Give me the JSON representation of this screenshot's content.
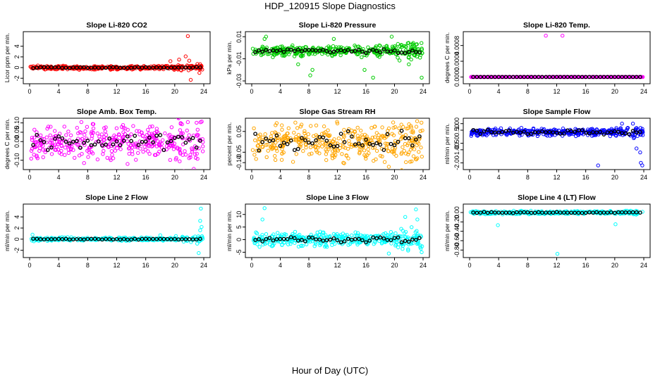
{
  "figure_title": "HDP_120915  Slope Diagnostics",
  "x_axis_label": "Hour of Day (UTC)",
  "chart_data": [
    {
      "type": "scatter",
      "title": "Slope Li-820 CO2",
      "ylabel": "Licor ppm per min.",
      "xlim": [
        0,
        24
      ],
      "xticks": [
        0,
        4,
        8,
        12,
        16,
        20,
        24
      ],
      "ylim": [
        -2.5,
        6.2
      ],
      "yticks": [
        -2,
        0,
        2,
        4
      ],
      "color": "#ff0000",
      "baseline": 0,
      "spread": 0.35,
      "mean_spread": 0.15,
      "outliers": [
        [
          21.8,
          5.9
        ],
        [
          22.2,
          -2.3
        ],
        [
          21.5,
          2.1
        ],
        [
          22.0,
          1.3
        ],
        [
          20.6,
          1.5
        ],
        [
          19.4,
          1.2
        ],
        [
          23.4,
          -1.0
        ]
      ]
    },
    {
      "type": "scatter",
      "title": "Slope Li-820 Pressure",
      "ylabel": "kPa per min.",
      "xlim": [
        0,
        24
      ],
      "xticks": [
        0,
        4,
        8,
        12,
        16,
        20,
        24
      ],
      "ylim": [
        -0.03,
        0.012
      ],
      "yticks": [
        0.01,
        -0.01,
        -0.03
      ],
      "color": "#00cc00",
      "baseline": -0.003,
      "spread": 0.0045,
      "mean_spread": 0.002,
      "outliers": [
        [
          1.8,
          0.008
        ],
        [
          2.0,
          0.01
        ],
        [
          8.2,
          -0.025
        ],
        [
          8.5,
          -0.02
        ],
        [
          15.8,
          -0.02
        ],
        [
          17.0,
          -0.027
        ],
        [
          19.6,
          0.01
        ],
        [
          23.8,
          -0.027
        ],
        [
          22.0,
          -0.015
        ],
        [
          11.5,
          0.008
        ],
        [
          6.5,
          -0.015
        ]
      ]
    },
    {
      "type": "scatter",
      "title": "Slope Li-820 Temp.",
      "ylabel": "degrees C per min.",
      "xlim": [
        0,
        24
      ],
      "xticks": [
        0,
        4,
        8,
        12,
        16,
        20,
        24
      ],
      "ylim": [
        -0.0001,
        0.00108
      ],
      "yticks": [
        0.0,
        0.0004,
        0.0008
      ],
      "color": "#ff00ff",
      "baseline": 0,
      "spread": 0,
      "mean_spread": 0,
      "outliers": [
        [
          10.5,
          0.00105
        ],
        [
          12.8,
          0.00105
        ]
      ]
    },
    {
      "type": "scatter",
      "title": "Slope Amb. Box Temp.",
      "ylabel": "degrees C per min.",
      "xlim": [
        0,
        24
      ],
      "xticks": [
        0,
        4,
        8,
        12,
        16,
        20,
        24
      ],
      "ylim": [
        -0.135,
        0.11
      ],
      "yticks": [
        -0.1,
        0.0,
        0.05,
        0.1
      ],
      "color": "#ff00ff",
      "baseline": 0.0,
      "spread": 0.08,
      "mean_spread": 0.05,
      "outliers": [
        [
          7.5,
          -0.115
        ],
        [
          13.5,
          -0.12
        ]
      ]
    },
    {
      "type": "scatter",
      "title": "Slope Gas Stream RH",
      "ylabel": "percent per min.",
      "xlim": [
        0,
        24
      ],
      "xticks": [
        0,
        4,
        8,
        12,
        16,
        20,
        24
      ],
      "ylim": [
        -0.12,
        0.1
      ],
      "yticks": [
        -0.1,
        -0.05,
        0.05
      ],
      "color": "#ffa500",
      "baseline": 0.0,
      "spread": 0.08,
      "mean_spread": 0.055,
      "outliers": [
        [
          19.2,
          -0.12
        ],
        [
          3.5,
          0.09
        ]
      ]
    },
    {
      "type": "scatter",
      "title": "Slope Sample Flow",
      "ylabel": "ml/min per min.",
      "xlim": [
        0,
        24
      ],
      "xticks": [
        0,
        4,
        8,
        12,
        16,
        20,
        24
      ],
      "ylim": [
        -2.3,
        1.2
      ],
      "yticks": [
        -2.0,
        -1.0,
        -0.5,
        0.5,
        1.0
      ],
      "color": "#0000ff",
      "baseline": 0.35,
      "spread": 0.25,
      "mean_spread": 0.2,
      "outliers": [
        [
          17.7,
          -2.2
        ],
        [
          23.6,
          -2.0
        ],
        [
          23.8,
          -2.2
        ],
        [
          21.0,
          1.0
        ],
        [
          22.5,
          1.0
        ],
        [
          23.0,
          -0.9
        ],
        [
          23.5,
          -1.2
        ]
      ]
    },
    {
      "type": "scatter",
      "title": "Slope Line 2 Flow",
      "ylabel": "ml/min per min.",
      "xlim": [
        0,
        24
      ],
      "xticks": [
        0,
        4,
        8,
        12,
        16,
        20,
        24
      ],
      "ylim": [
        -2.8,
        5.8
      ],
      "yticks": [
        -2,
        0,
        2,
        4
      ],
      "color": "#00ffff",
      "baseline": 0,
      "spread": 0.3,
      "mean_spread": 0.1,
      "outliers": [
        [
          23.6,
          5.5
        ],
        [
          23.5,
          3.3
        ],
        [
          23.7,
          2.2
        ],
        [
          23.5,
          1.6
        ],
        [
          23.3,
          -2.5
        ],
        [
          0.4,
          0.8
        ],
        [
          18.0,
          0.7
        ],
        [
          23.1,
          -0.8
        ]
      ]
    },
    {
      "type": "scatter",
      "title": "Slope Line 3 Flow",
      "ylabel": "ml/min per min.",
      "xlim": [
        0,
        24
      ],
      "xticks": [
        0,
        4,
        8,
        12,
        16,
        20,
        24
      ],
      "ylim": [
        -6.0,
        13.0
      ],
      "yticks": [
        -5,
        0,
        5,
        10
      ],
      "color": "#00ffff",
      "baseline": 0,
      "spread": 2.5,
      "mean_spread": 1.2,
      "outliers": [
        [
          1.8,
          12.5
        ],
        [
          23.0,
          12.0
        ],
        [
          19.2,
          -5.5
        ],
        [
          23.8,
          -5.0
        ],
        [
          23.6,
          -3.0
        ],
        [
          1.5,
          8.0
        ],
        [
          23.2,
          8.0
        ],
        [
          21.5,
          9.0
        ]
      ]
    },
    {
      "type": "scatter",
      "title": "Slope Line 4 (LT) Flow",
      "ylabel": "ml/min per min.",
      "xlim": [
        0,
        24
      ],
      "xticks": [
        0,
        4,
        8,
        12,
        16,
        20,
        24
      ],
      "ylim": [
        -0.9,
        0.12
      ],
      "yticks": [
        -0.8,
        -0.6,
        -0.4,
        -0.2,
        0.0
      ],
      "color": "#00ffff",
      "baseline": 0.0,
      "spread": 0.03,
      "mean_spread": 0.015,
      "outliers": [
        [
          12.1,
          -0.88
        ],
        [
          3.9,
          -0.27
        ],
        [
          20.1,
          -0.25
        ]
      ]
    }
  ]
}
